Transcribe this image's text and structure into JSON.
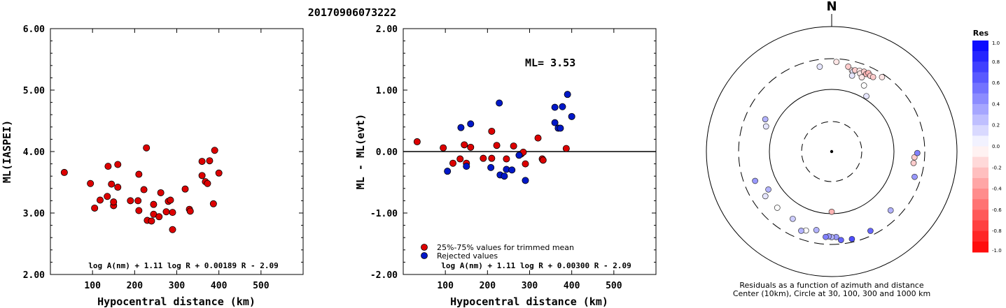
{
  "title": "20170906073222",
  "chart_data": [
    {
      "type": "scatter",
      "xlabel": "Hypocentral distance (km)",
      "ylabel": "ML(IASPEI)",
      "xlim": [
        0,
        600
      ],
      "ylim": [
        2.0,
        6.0
      ],
      "x_ticks": [
        "100",
        "200",
        "300",
        "400",
        "500"
      ],
      "y_ticks": [
        "2.00",
        "3.00",
        "4.00",
        "5.00",
        "6.00"
      ],
      "formula": "log A(nm) + 1.11 log R + 0.00189 R - 2.09",
      "point_color": "#dd0000",
      "points": [
        [
          33,
          3.66
        ],
        [
          95,
          3.48
        ],
        [
          105,
          3.08
        ],
        [
          118,
          3.21
        ],
        [
          135,
          3.27
        ],
        [
          137,
          3.76
        ],
        [
          145,
          3.47
        ],
        [
          150,
          3.12
        ],
        [
          150,
          3.18
        ],
        [
          160,
          3.79
        ],
        [
          160,
          3.42
        ],
        [
          190,
          3.2
        ],
        [
          208,
          3.2
        ],
        [
          210,
          3.63
        ],
        [
          210,
          3.04
        ],
        [
          222,
          3.38
        ],
        [
          228,
          4.06
        ],
        [
          230,
          2.88
        ],
        [
          240,
          2.87
        ],
        [
          245,
          2.98
        ],
        [
          245,
          3.14
        ],
        [
          258,
          2.94
        ],
        [
          262,
          3.33
        ],
        [
          275,
          3.02
        ],
        [
          280,
          3.19
        ],
        [
          285,
          3.21
        ],
        [
          290,
          2.73
        ],
        [
          290,
          3.01
        ],
        [
          320,
          3.39
        ],
        [
          330,
          3.06
        ],
        [
          332,
          3.03
        ],
        [
          360,
          3.84
        ],
        [
          360,
          3.61
        ],
        [
          368,
          3.51
        ],
        [
          373,
          3.48
        ],
        [
          378,
          3.85
        ],
        [
          387,
          3.15
        ],
        [
          390,
          4.02
        ],
        [
          400,
          3.65
        ]
      ]
    },
    {
      "type": "scatter",
      "xlabel": "Hypocentral distance (km)",
      "ylabel": "ML - ML(evt)",
      "xlim": [
        0,
        600
      ],
      "ylim": [
        -2.0,
        2.0
      ],
      "x_ticks": [
        "100",
        "200",
        "300",
        "400",
        "500"
      ],
      "y_ticks": [
        "-2.00",
        "-1.00",
        "0.00",
        "1.00",
        "2.00"
      ],
      "annotation": "ML= 3.53",
      "formula": "log A(nm) + 1.11 log R + 0.00300 R - 2.09",
      "legend": [
        "25%-75% values for trimmed mean",
        "Rejected values"
      ],
      "legend_colors": [
        "#dd0000",
        "#0018c8"
      ],
      "series": [
        {
          "name": "25%-75% values for trimmed mean",
          "points": [
            [
              33,
              0.16
            ],
            [
              95,
              0.06
            ],
            [
              118,
              -0.19
            ],
            [
              135,
              -0.12
            ],
            [
              145,
              0.11
            ],
            [
              150,
              -0.19
            ],
            [
              160,
              0.07
            ],
            [
              190,
              -0.11
            ],
            [
              210,
              0.33
            ],
            [
              210,
              -0.11
            ],
            [
              222,
              0.1
            ],
            [
              245,
              -0.12
            ],
            [
              262,
              0.09
            ],
            [
              280,
              -0.04
            ],
            [
              285,
              -0.01
            ],
            [
              290,
              -0.2
            ],
            [
              320,
              0.22
            ],
            [
              330,
              -0.12
            ],
            [
              332,
              -0.14
            ],
            [
              387,
              0.05
            ]
          ]
        },
        {
          "name": "Rejected values",
          "points": [
            [
              105,
              -0.32
            ],
            [
              137,
              0.39
            ],
            [
              150,
              -0.24
            ],
            [
              160,
              0.45
            ],
            [
              208,
              -0.26
            ],
            [
              228,
              0.79
            ],
            [
              230,
              -0.38
            ],
            [
              240,
              -0.4
            ],
            [
              245,
              -0.29
            ],
            [
              258,
              -0.3
            ],
            [
              275,
              -0.06
            ],
            [
              290,
              -0.47
            ],
            [
              360,
              0.72
            ],
            [
              360,
              0.47
            ],
            [
              368,
              0.38
            ],
            [
              373,
              0.38
            ],
            [
              378,
              0.73
            ],
            [
              390,
              0.93
            ],
            [
              400,
              0.57
            ]
          ]
        }
      ]
    },
    {
      "type": "scatter",
      "subtype": "polar",
      "north_label": "N",
      "caption": [
        "Residuals as a function of azimuth and distance",
        "Center (10km), Circle at 30, 100, 300 and 1000 km"
      ],
      "colorbar_title": "Res",
      "colorbar_ticks": [
        "1.0",
        "0.8",
        "0.6",
        "0.4",
        "0.2",
        "0.0",
        "-0.2",
        "-0.4",
        "-0.6",
        "-0.8",
        "-1.0"
      ],
      "colorbar_range": [
        -1.0,
        1.0
      ],
      "points": [
        {
          "azimuth": 352,
          "distance_km": 232,
          "residual": 0.1
        },
        {
          "azimuth": 3,
          "distance_km": 268,
          "residual": -0.1
        },
        {
          "azimuth": 11,
          "distance_km": 239,
          "residual": -0.2
        },
        {
          "azimuth": 14,
          "distance_km": 215,
          "residual": -0.1
        },
        {
          "azimuth": 15,
          "distance_km": 209,
          "residual": 0.1
        },
        {
          "azimuth": 16,
          "distance_km": 223,
          "residual": -0.2
        },
        {
          "azimuth": 19,
          "distance_km": 230,
          "residual": -0.1
        },
        {
          "azimuth": 20,
          "distance_km": 211,
          "residual": -0.1
        },
        {
          "azimuth": 22,
          "distance_km": 236,
          "residual": -0.2
        },
        {
          "azimuth": 24,
          "distance_km": 225,
          "residual": -0.3
        },
        {
          "azimuth": 25,
          "distance_km": 240,
          "residual": -0.3
        },
        {
          "azimuth": 27,
          "distance_km": 226,
          "residual": -0.2
        },
        {
          "azimuth": 29,
          "distance_km": 228,
          "residual": -0.2
        },
        {
          "azimuth": 34,
          "distance_km": 269,
          "residual": -0.1
        },
        {
          "azimuth": 15,
          "distance_km": 180,
          "residual": 0.1
        },
        {
          "azimuth": 22,
          "distance_km": 190,
          "residual": -0.1
        },
        {
          "azimuth": 26,
          "distance_km": 150,
          "residual": 0.0
        },
        {
          "azimuth": 32,
          "distance_km": 112,
          "residual": 0.1
        },
        {
          "azimuth": 98,
          "distance_km": 207,
          "residual": -0.2
        },
        {
          "azimuth": 94,
          "distance_km": 209,
          "residual": -0.2
        },
        {
          "azimuth": 91,
          "distance_km": 230,
          "residual": 0.5
        },
        {
          "azimuth": 107,
          "distance_km": 239,
          "residual": 0.4
        },
        {
          "azimuth": 135,
          "distance_km": 212,
          "residual": 0.3
        },
        {
          "azimuth": 154,
          "distance_km": 254,
          "residual": 0.6
        },
        {
          "azimuth": 167,
          "distance_km": 268,
          "residual": 0.7
        },
        {
          "azimuth": 174,
          "distance_km": 261,
          "residual": 0.6
        },
        {
          "azimuth": 177,
          "distance_km": 231,
          "residual": 0.4
        },
        {
          "azimuth": 180,
          "distance_km": 231,
          "residual": 0.3
        },
        {
          "azimuth": 182,
          "distance_km": 225,
          "residual": 0.4
        },
        {
          "azimuth": 184,
          "distance_km": 231,
          "residual": 0.5
        },
        {
          "azimuth": 180,
          "distance_km": 93,
          "residual": -0.3
        },
        {
          "azimuth": 191,
          "distance_km": 189,
          "residual": 0.3
        },
        {
          "azimuth": 198,
          "distance_km": 211,
          "residual": 0.0
        },
        {
          "azimuth": 201,
          "distance_km": 225,
          "residual": 0.3
        },
        {
          "azimuth": 210,
          "distance_km": 174,
          "residual": 0.2
        },
        {
          "azimuth": 224,
          "distance_km": 177,
          "residual": 0.0
        },
        {
          "azimuth": 236,
          "distance_km": 188,
          "residual": 0.1
        },
        {
          "azimuth": 239,
          "distance_km": 151,
          "residual": 0.3
        },
        {
          "azimuth": 249,
          "distance_km": 202,
          "residual": 0.4
        },
        {
          "azimuth": 291,
          "distance_km": 133,
          "residual": 0.1
        },
        {
          "azimuth": 296,
          "distance_km": 151,
          "residual": 0.3
        }
      ]
    }
  ]
}
